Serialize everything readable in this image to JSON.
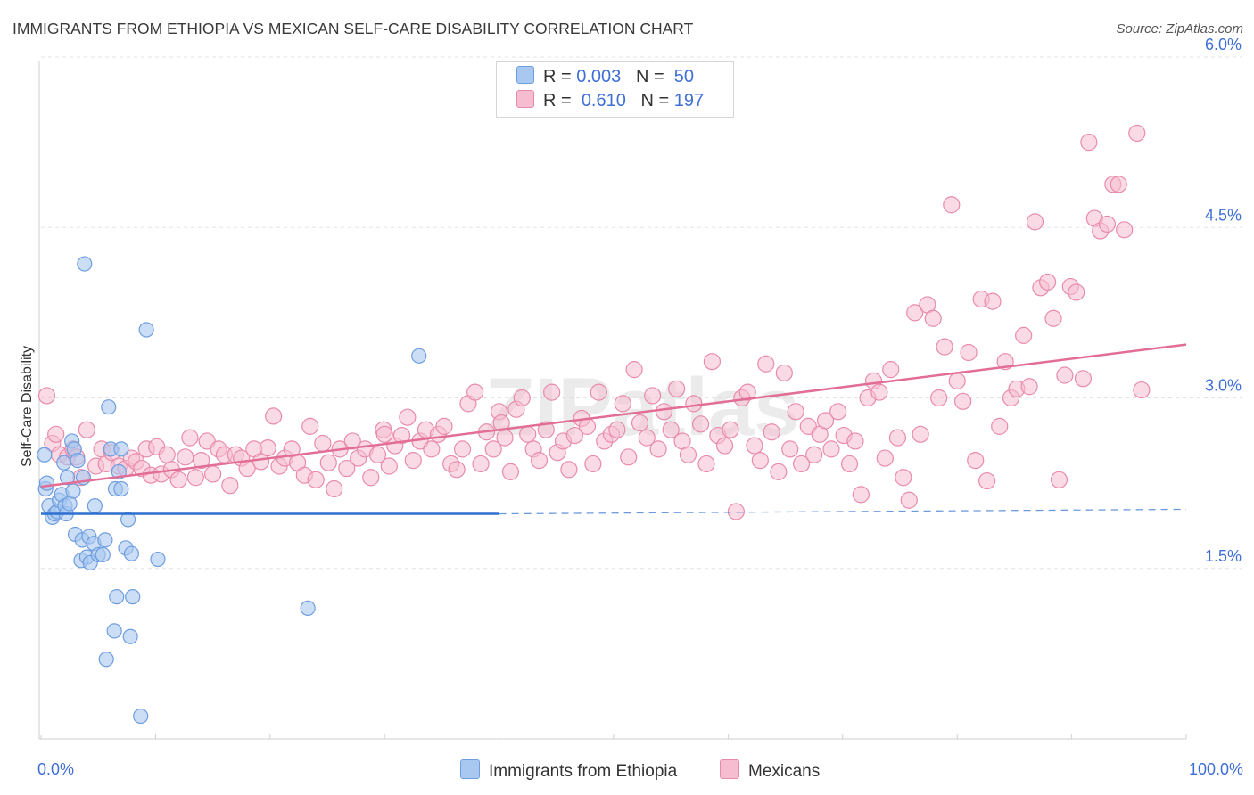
{
  "title": "IMMIGRANTS FROM ETHIOPIA VS MEXICAN SELF-CARE DISABILITY CORRELATION CHART",
  "source": "Source: ZipAtlas.com",
  "legend_top": {
    "ethiopia": {
      "r_label": "R =",
      "r_value": "0.003",
      "n_label": "N =",
      "n_value": "50"
    },
    "mexicans": {
      "r_label": "R =",
      "r_value": "0.610",
      "n_label": "N =",
      "n_value": "197"
    }
  },
  "colors": {
    "ethiopia_fill": "#a9c8f0",
    "ethiopia_stroke": "#6f9ee0",
    "ethiopia_line": "#2f6fcf",
    "mexicans_fill": "#f6bdd0",
    "mexicans_stroke": "#e98aab",
    "mexicans_line": "#e26d97",
    "tick_text": "#3f6fd6",
    "grid": "#e3e3e3"
  },
  "chart_data": {
    "type": "scatter",
    "xlabel": "",
    "ylabel": "Self-Care Disability",
    "x_tick_labels": [
      "0.0%",
      "100.0%"
    ],
    "y_ticks": [
      {
        "value": 1.5,
        "label": "1.5%"
      },
      {
        "value": 3.0,
        "label": "3.0%"
      },
      {
        "value": 4.5,
        "label": "4.5%"
      },
      {
        "value": 6.0,
        "label": "6.0%"
      }
    ],
    "xlim": [
      0,
      100
    ],
    "ylim": [
      0,
      6.2
    ],
    "grid": true,
    "legend_placement": "bottom-center",
    "watermark": "ZIPatlas",
    "series": [
      {
        "name": "Immigrants from Ethiopia",
        "trend": {
          "x0": 0,
          "y0": 1.98,
          "x1": 40,
          "y1": 1.98,
          "dashed_to": 100,
          "dashed_y": 2.02
        },
        "points": [
          [
            0.3,
            2.5
          ],
          [
            0.4,
            2.2
          ],
          [
            0.5,
            2.25
          ],
          [
            0.7,
            2.05
          ],
          [
            1.0,
            1.95
          ],
          [
            1.2,
            1.98
          ],
          [
            1.4,
            2.0
          ],
          [
            1.6,
            2.1
          ],
          [
            1.8,
            2.15
          ],
          [
            2.0,
            2.43
          ],
          [
            2.1,
            2.05
          ],
          [
            2.2,
            1.98
          ],
          [
            2.3,
            2.3
          ],
          [
            2.5,
            2.07
          ],
          [
            2.7,
            2.62
          ],
          [
            2.8,
            2.18
          ],
          [
            2.9,
            2.55
          ],
          [
            3.0,
            1.8
          ],
          [
            3.2,
            2.45
          ],
          [
            3.5,
            1.57
          ],
          [
            3.6,
            1.75
          ],
          [
            3.7,
            2.3
          ],
          [
            3.8,
            4.18
          ],
          [
            4.0,
            1.6
          ],
          [
            4.2,
            1.78
          ],
          [
            4.3,
            1.55
          ],
          [
            4.6,
            1.72
          ],
          [
            4.7,
            2.05
          ],
          [
            5.0,
            1.62
          ],
          [
            5.4,
            1.62
          ],
          [
            5.6,
            1.75
          ],
          [
            5.7,
            0.7
          ],
          [
            5.9,
            2.92
          ],
          [
            6.1,
            2.55
          ],
          [
            6.4,
            0.95
          ],
          [
            6.5,
            2.2
          ],
          [
            6.6,
            1.25
          ],
          [
            6.8,
            2.35
          ],
          [
            7.0,
            2.2
          ],
          [
            7.0,
            2.55
          ],
          [
            7.4,
            1.68
          ],
          [
            7.6,
            1.93
          ],
          [
            7.8,
            0.9
          ],
          [
            7.9,
            1.63
          ],
          [
            8.0,
            1.25
          ],
          [
            8.7,
            0.2
          ],
          [
            9.2,
            3.6
          ],
          [
            10.2,
            1.58
          ],
          [
            23.3,
            1.15
          ],
          [
            33.0,
            3.37
          ]
        ]
      },
      {
        "name": "Mexicans",
        "trend": {
          "x0": 0,
          "y0": 2.22,
          "x1": 100,
          "y1": 3.47
        },
        "points": [
          [
            0.5,
            3.02
          ],
          [
            1.0,
            2.6
          ],
          [
            1.3,
            2.68
          ],
          [
            1.6,
            2.5
          ],
          [
            2.3,
            2.48
          ],
          [
            2.8,
            2.55
          ],
          [
            3.1,
            2.48
          ],
          [
            3.5,
            2.3
          ],
          [
            4.0,
            2.72
          ],
          [
            4.8,
            2.4
          ],
          [
            5.3,
            2.55
          ],
          [
            5.7,
            2.42
          ],
          [
            6.2,
            2.52
          ],
          [
            6.8,
            2.4
          ],
          [
            7.4,
            2.38
          ],
          [
            7.9,
            2.47
          ],
          [
            8.3,
            2.44
          ],
          [
            8.8,
            2.38
          ],
          [
            9.2,
            2.55
          ],
          [
            9.6,
            2.32
          ],
          [
            10.1,
            2.57
          ],
          [
            10.5,
            2.33
          ],
          [
            11.0,
            2.5
          ],
          [
            11.4,
            2.37
          ],
          [
            12.0,
            2.28
          ],
          [
            12.6,
            2.48
          ],
          [
            13.0,
            2.65
          ],
          [
            13.5,
            2.3
          ],
          [
            14.0,
            2.45
          ],
          [
            14.5,
            2.62
          ],
          [
            15.0,
            2.33
          ],
          [
            15.5,
            2.55
          ],
          [
            16.0,
            2.5
          ],
          [
            16.5,
            2.23
          ],
          [
            17.0,
            2.5
          ],
          [
            17.5,
            2.47
          ],
          [
            18.0,
            2.38
          ],
          [
            18.6,
            2.55
          ],
          [
            19.2,
            2.44
          ],
          [
            19.8,
            2.56
          ],
          [
            20.3,
            2.84
          ],
          [
            20.8,
            2.4
          ],
          [
            21.3,
            2.47
          ],
          [
            21.9,
            2.55
          ],
          [
            22.4,
            2.43
          ],
          [
            23.0,
            2.32
          ],
          [
            23.5,
            2.75
          ],
          [
            24.0,
            2.28
          ],
          [
            24.6,
            2.6
          ],
          [
            25.1,
            2.43
          ],
          [
            25.6,
            2.2
          ],
          [
            26.1,
            2.55
          ],
          [
            26.7,
            2.38
          ],
          [
            27.2,
            2.62
          ],
          [
            27.7,
            2.47
          ],
          [
            28.3,
            2.55
          ],
          [
            28.8,
            2.3
          ],
          [
            29.4,
            2.5
          ],
          [
            29.9,
            2.72
          ],
          [
            30.4,
            2.4
          ],
          [
            30.9,
            2.58
          ],
          [
            31.5,
            2.67
          ],
          [
            32.0,
            2.83
          ],
          [
            32.5,
            2.45
          ],
          [
            33.1,
            2.62
          ],
          [
            33.6,
            2.72
          ],
          [
            34.1,
            2.55
          ],
          [
            34.7,
            2.68
          ],
          [
            35.2,
            2.75
          ],
          [
            35.8,
            2.42
          ],
          [
            36.3,
            2.37
          ],
          [
            36.8,
            2.55
          ],
          [
            37.3,
            2.95
          ],
          [
            37.9,
            3.05
          ],
          [
            38.4,
            2.42
          ],
          [
            38.9,
            2.7
          ],
          [
            39.5,
            2.55
          ],
          [
            40.0,
            2.88
          ],
          [
            40.5,
            2.65
          ],
          [
            41.0,
            2.35
          ],
          [
            41.5,
            2.9
          ],
          [
            42.0,
            3.0
          ],
          [
            42.5,
            2.68
          ],
          [
            43.0,
            2.55
          ],
          [
            43.5,
            2.45
          ],
          [
            44.1,
            2.72
          ],
          [
            44.6,
            3.05
          ],
          [
            45.1,
            2.52
          ],
          [
            45.6,
            2.62
          ],
          [
            46.1,
            2.37
          ],
          [
            46.6,
            2.67
          ],
          [
            47.2,
            2.82
          ],
          [
            47.7,
            2.75
          ],
          [
            48.2,
            2.42
          ],
          [
            48.7,
            3.05
          ],
          [
            49.2,
            2.62
          ],
          [
            49.8,
            2.68
          ],
          [
            50.3,
            2.72
          ],
          [
            50.8,
            2.95
          ],
          [
            51.3,
            2.48
          ],
          [
            51.8,
            3.25
          ],
          [
            52.3,
            2.78
          ],
          [
            52.9,
            2.65
          ],
          [
            53.4,
            3.02
          ],
          [
            53.9,
            2.55
          ],
          [
            54.4,
            2.88
          ],
          [
            55.0,
            2.72
          ],
          [
            55.5,
            3.08
          ],
          [
            56.0,
            2.62
          ],
          [
            56.5,
            2.5
          ],
          [
            57.0,
            2.95
          ],
          [
            57.6,
            2.77
          ],
          [
            58.1,
            2.42
          ],
          [
            58.6,
            3.32
          ],
          [
            59.1,
            2.67
          ],
          [
            59.7,
            2.58
          ],
          [
            60.2,
            2.72
          ],
          [
            60.7,
            2.0
          ],
          [
            61.2,
            3.0
          ],
          [
            61.7,
            3.05
          ],
          [
            62.3,
            2.58
          ],
          [
            62.8,
            2.45
          ],
          [
            63.3,
            3.3
          ],
          [
            63.8,
            2.7
          ],
          [
            64.4,
            2.35
          ],
          [
            64.9,
            3.22
          ],
          [
            65.4,
            2.55
          ],
          [
            65.9,
            2.88
          ],
          [
            66.4,
            2.42
          ],
          [
            67.0,
            2.75
          ],
          [
            67.5,
            2.5
          ],
          [
            68.0,
            2.68
          ],
          [
            68.5,
            2.8
          ],
          [
            69.0,
            2.55
          ],
          [
            69.6,
            2.88
          ],
          [
            70.1,
            2.67
          ],
          [
            70.6,
            2.42
          ],
          [
            71.1,
            2.62
          ],
          [
            71.6,
            2.15
          ],
          [
            72.2,
            3.0
          ],
          [
            72.7,
            3.15
          ],
          [
            73.2,
            3.05
          ],
          [
            73.7,
            2.47
          ],
          [
            74.2,
            3.25
          ],
          [
            74.8,
            2.65
          ],
          [
            75.3,
            2.3
          ],
          [
            75.8,
            2.1
          ],
          [
            76.3,
            3.75
          ],
          [
            76.8,
            2.68
          ],
          [
            77.4,
            3.82
          ],
          [
            77.9,
            3.7
          ],
          [
            78.4,
            3.0
          ],
          [
            78.9,
            3.45
          ],
          [
            79.5,
            4.7
          ],
          [
            80.0,
            3.15
          ],
          [
            80.5,
            2.97
          ],
          [
            81.0,
            3.4
          ],
          [
            81.6,
            2.45
          ],
          [
            82.1,
            3.87
          ],
          [
            82.6,
            2.27
          ],
          [
            83.1,
            3.85
          ],
          [
            83.7,
            2.75
          ],
          [
            84.2,
            3.32
          ],
          [
            84.7,
            3.0
          ],
          [
            85.2,
            3.08
          ],
          [
            85.8,
            3.55
          ],
          [
            86.3,
            3.1
          ],
          [
            86.8,
            4.55
          ],
          [
            87.3,
            3.97
          ],
          [
            87.9,
            4.02
          ],
          [
            88.4,
            3.7
          ],
          [
            88.9,
            2.28
          ],
          [
            89.4,
            3.2
          ],
          [
            89.9,
            3.98
          ],
          [
            90.4,
            3.93
          ],
          [
            91.0,
            3.17
          ],
          [
            91.5,
            5.25
          ],
          [
            92.0,
            4.58
          ],
          [
            92.5,
            4.47
          ],
          [
            93.1,
            4.53
          ],
          [
            93.6,
            4.88
          ],
          [
            94.1,
            4.88
          ],
          [
            94.6,
            4.48
          ],
          [
            95.7,
            5.33
          ],
          [
            96.1,
            3.07
          ],
          [
            40.2,
            2.78
          ],
          [
            30.0,
            2.68
          ]
        ]
      }
    ]
  },
  "bottom_legend": {
    "ethiopia": "Immigrants from Ethiopia",
    "mexicans": "Mexicans"
  }
}
